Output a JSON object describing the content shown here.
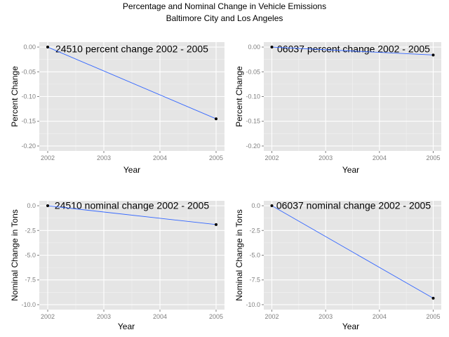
{
  "figure": {
    "title": "Percentage and Nominal Change in Vehicle Emissions",
    "subtitle": "Baltimore City and Los Angeles"
  },
  "colors": {
    "panel_background": "#e5e5e5",
    "grid_major": "#ffffff",
    "grid_minor": "#f2f2f2",
    "line": "#3366ff",
    "point": "#000000"
  },
  "chart_data": [
    {
      "type": "line",
      "title": "24510 percent change 2002 - 2005",
      "xlabel": "Year",
      "ylabel": "Percent Change",
      "x_ticks": [
        "2002",
        "2003",
        "2004",
        "2005"
      ],
      "y_ticks": [
        "0.00",
        "-0.05",
        "-0.10",
        "-0.15",
        "-0.20"
      ],
      "xlim": [
        2002,
        2005
      ],
      "ylim": [
        -0.2,
        0.0
      ],
      "grid": true,
      "series": [
        {
          "x": [
            2002,
            2005
          ],
          "y": [
            0.0,
            -0.145
          ]
        }
      ]
    },
    {
      "type": "line",
      "title": "06037 percent change 2002 - 2005",
      "xlabel": "Year",
      "ylabel": "Percent Change",
      "x_ticks": [
        "2002",
        "2003",
        "2004",
        "2005"
      ],
      "y_ticks": [
        "0.00",
        "-0.05",
        "-0.10",
        "-0.15",
        "-0.20"
      ],
      "xlim": [
        2002,
        2005
      ],
      "ylim": [
        -0.2,
        0.0
      ],
      "grid": true,
      "series": [
        {
          "x": [
            2002,
            2005
          ],
          "y": [
            0.0,
            -0.016
          ]
        }
      ]
    },
    {
      "type": "line",
      "title": "24510 nominal change 2002 - 2005",
      "xlabel": "Year",
      "ylabel": "Nominal Change in Tons",
      "x_ticks": [
        "2002",
        "2003",
        "2004",
        "2005"
      ],
      "y_ticks": [
        "0.0",
        "-2.5",
        "-5.0",
        "-7.5",
        "-10.0"
      ],
      "xlim": [
        2002,
        2005
      ],
      "ylim": [
        -10.0,
        0.0
      ],
      "grid": true,
      "series": [
        {
          "x": [
            2002,
            2005
          ],
          "y": [
            0.0,
            -1.9
          ]
        }
      ]
    },
    {
      "type": "line",
      "title": "06037 nominal change 2002 - 2005",
      "xlabel": "Year",
      "ylabel": "Nominal Change in Tons",
      "x_ticks": [
        "2002",
        "2003",
        "2004",
        "2005"
      ],
      "y_ticks": [
        "0.0",
        "-2.5",
        "-5.0",
        "-7.5",
        "-10.0"
      ],
      "xlim": [
        2002,
        2005
      ],
      "ylim": [
        -10.0,
        0.0
      ],
      "grid": true,
      "series": [
        {
          "x": [
            2002,
            2005
          ],
          "y": [
            0.0,
            -9.35
          ]
        }
      ]
    }
  ]
}
